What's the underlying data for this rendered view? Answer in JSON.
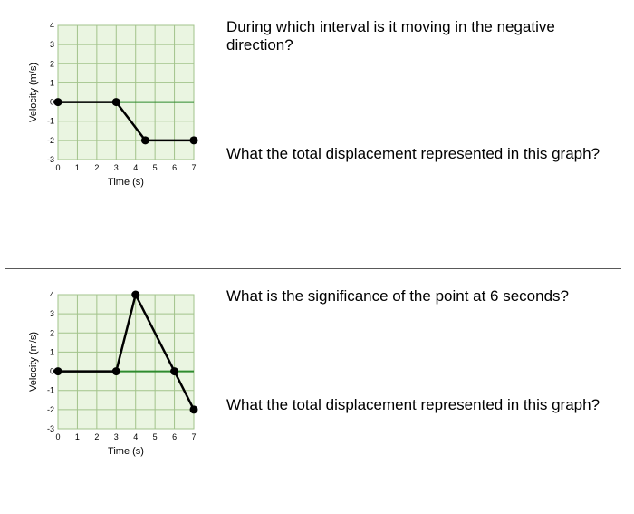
{
  "sec1": {
    "q1": "During which interval is it moving in the negative direction?",
    "q2": "What the total displacement represented in this graph?",
    "chart": {
      "type": "line",
      "xlabel": "Time (s)",
      "ylabel": "Velocity (m/s)",
      "label_fontsize": 11,
      "tick_fontsize": 9,
      "xlim": [
        0,
        7
      ],
      "ylim": [
        -3,
        4
      ],
      "xticks": [
        0,
        1,
        2,
        3,
        4,
        5,
        6,
        7
      ],
      "yticks": [
        -3,
        -2,
        -1,
        0,
        1,
        2,
        3,
        4
      ],
      "points": [
        {
          "x": 0,
          "y": 0
        },
        {
          "x": 3,
          "y": 0
        },
        {
          "x": 4.5,
          "y": -2
        },
        {
          "x": 6,
          "y": -2
        },
        {
          "x": 7,
          "y": -2
        }
      ],
      "markers": [
        {
          "x": 0,
          "y": 0
        },
        {
          "x": 3,
          "y": 0
        },
        {
          "x": 4.5,
          "y": -2
        },
        {
          "x": 7,
          "y": -2
        }
      ],
      "bg_color": "#eaf5e1",
      "grid_color": "#a2c38b",
      "axis_color": "#2e8b2e",
      "line_color": "#000000",
      "marker_color": "#000000",
      "line_width": 2.5,
      "marker_radius": 4.5
    }
  },
  "sec2": {
    "q1": "What is the significance of the point at 6 seconds?",
    "q2": "What the total displacement represented in this graph?",
    "chart": {
      "type": "line",
      "xlabel": "Time (s)",
      "ylabel": "Velocity (m/s)",
      "label_fontsize": 11,
      "tick_fontsize": 9,
      "xlim": [
        0,
        7
      ],
      "ylim": [
        -3,
        4
      ],
      "xticks": [
        0,
        1,
        2,
        3,
        4,
        5,
        6,
        7
      ],
      "yticks": [
        -3,
        -2,
        -1,
        0,
        1,
        2,
        3,
        4
      ],
      "points": [
        {
          "x": 0,
          "y": 0
        },
        {
          "x": 3,
          "y": 0
        },
        {
          "x": 4,
          "y": 4
        },
        {
          "x": 6,
          "y": 0
        },
        {
          "x": 7,
          "y": -2
        }
      ],
      "markers": [
        {
          "x": 0,
          "y": 0
        },
        {
          "x": 3,
          "y": 0
        },
        {
          "x": 4,
          "y": 4
        },
        {
          "x": 6,
          "y": 0
        },
        {
          "x": 7,
          "y": -2
        }
      ],
      "bg_color": "#eaf5e1",
      "grid_color": "#a2c38b",
      "axis_color": "#2e8b2e",
      "line_color": "#000000",
      "marker_color": "#000000",
      "line_width": 2.5,
      "marker_radius": 4.5
    }
  }
}
